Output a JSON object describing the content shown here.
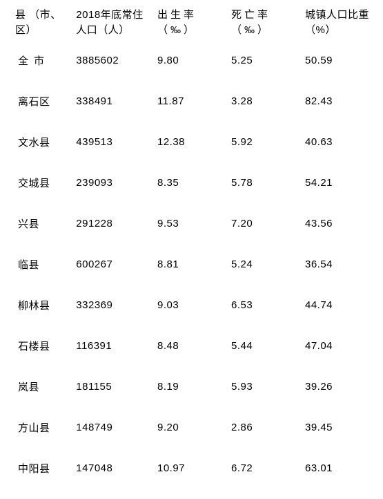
{
  "headers": {
    "region": "县\n（市、区）",
    "population": "2018年底常住人口（人）",
    "birth_rate": "出生率（‰）",
    "death_rate": "死亡率（‰）",
    "urban_share": "城镇人口比重（%）"
  },
  "rows": [
    {
      "region": "全市",
      "population": "3885602",
      "birth_rate": "9.80",
      "death_rate": "5.25",
      "urban_share": "50.59",
      "quanshi": true
    },
    {
      "region": "离石区",
      "population": "338491",
      "birth_rate": "11.87",
      "death_rate": "3.28",
      "urban_share": "82.43"
    },
    {
      "region": "文水县",
      "population": "439513",
      "birth_rate": "12.38",
      "death_rate": "5.92",
      "urban_share": "40.63"
    },
    {
      "region": "交城县",
      "population": "239093",
      "birth_rate": "8.35",
      "death_rate": "5.78",
      "urban_share": "54.21"
    },
    {
      "region": "兴县",
      "population": "291228",
      "birth_rate": "9.53",
      "death_rate": "7.20",
      "urban_share": "43.56"
    },
    {
      "region": "临县",
      "population": "600267",
      "birth_rate": "8.81",
      "death_rate": "5.24",
      "urban_share": "36.54"
    },
    {
      "region": "柳林县",
      "population": "332369",
      "birth_rate": "9.03",
      "death_rate": "6.53",
      "urban_share": "44.74"
    },
    {
      "region": "石楼县",
      "population": "116391",
      "birth_rate": "8.48",
      "death_rate": "5.44",
      "urban_share": "47.04"
    },
    {
      "region": "岚县",
      "population": "181155",
      "birth_rate": "8.19",
      "death_rate": "5.93",
      "urban_share": "39.26"
    },
    {
      "region": "方山县",
      "population": "148749",
      "birth_rate": "9.20",
      "death_rate": "2.86",
      "urban_share": "39.45"
    },
    {
      "region": "中阳县",
      "population": "147048",
      "birth_rate": "10.97",
      "death_rate": "6.72",
      "urban_share": "63.01"
    }
  ],
  "style": {
    "background_color": "#ffffff",
    "text_color": "#000000",
    "font_size": 15,
    "header_row_height": 50,
    "body_row_height": 59
  }
}
